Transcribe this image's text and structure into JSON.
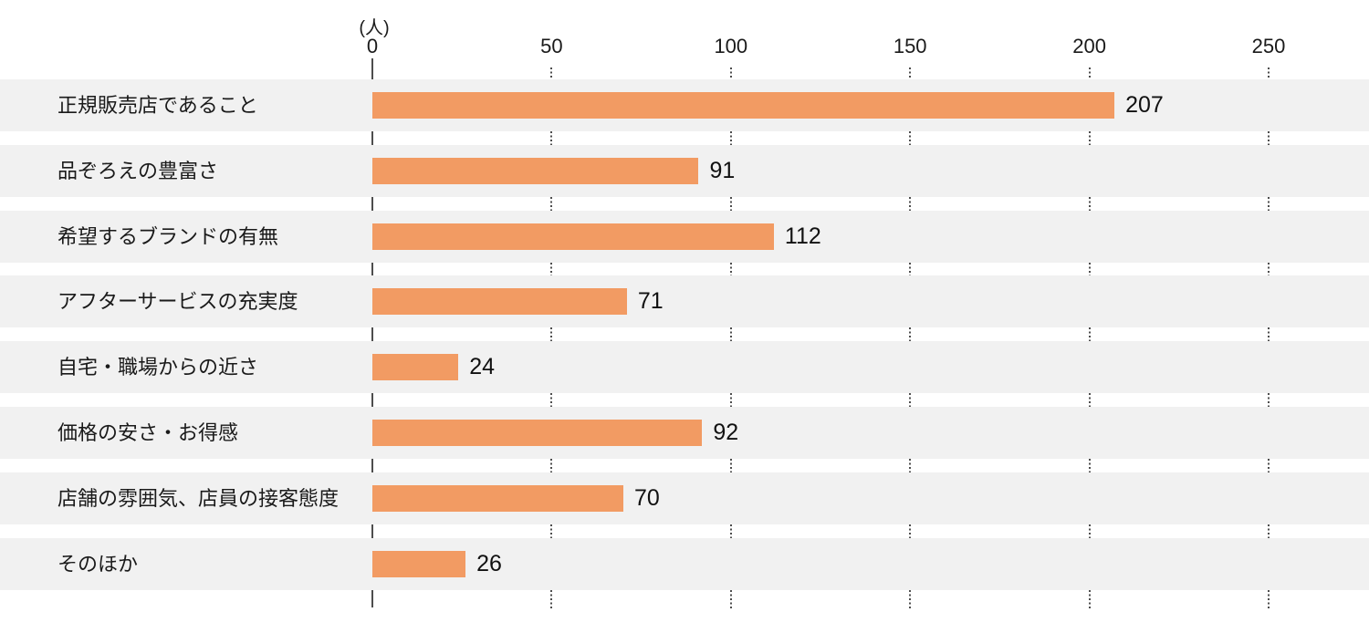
{
  "chart_data": {
    "type": "bar",
    "orientation": "horizontal",
    "title": "",
    "unit_label": "(人)",
    "categories": [
      "正規販売店であること",
      "品ぞろえの豊富さ",
      "希望するブランドの有無",
      "アフターサービスの充実度",
      "自宅・職場からの近さ",
      "価格の安さ・お得感",
      "店舗の雰囲気、店員の接客態度",
      "そのほか"
    ],
    "values": [
      207,
      91,
      112,
      71,
      24,
      92,
      70,
      26
    ],
    "x_ticks": [
      0,
      50,
      100,
      150,
      200,
      250
    ],
    "x_axis_range": [
      0,
      278
    ],
    "grid": "dotted-vertical-segments-in-row-gaps",
    "legend": "none",
    "colors": {
      "bar": "#f29b63",
      "row_stripe": "#f1f1f1",
      "axis": "#4d4d4d",
      "text": "#1a1a1a"
    }
  }
}
